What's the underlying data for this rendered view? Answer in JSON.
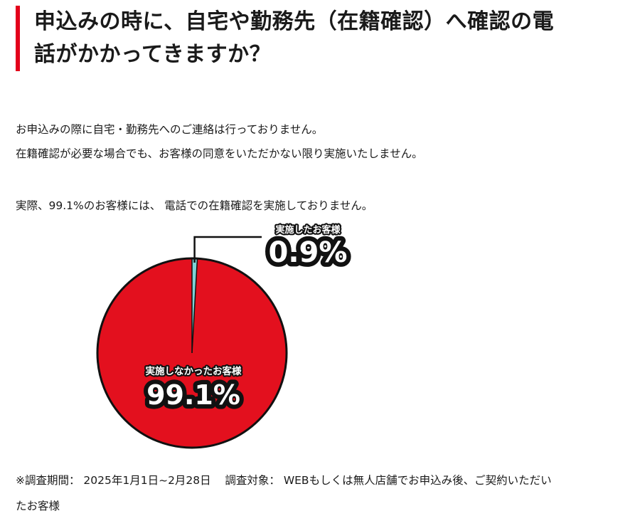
{
  "heading": {
    "line1": "申込みの時に、自宅や勤務先（在籍確認）へ確認の電",
    "line2": "話がかかってきますか？",
    "accent_color": "#e3001b"
  },
  "body": {
    "paragraph1": "お申込みの際に自宅・勤務先へのご連絡は行っておりません。",
    "paragraph2": "在籍確認が必要な場合でも、お客様の同意をいただかない限り実施いたしません。",
    "paragraph3": "実際、99.1%のお客様には、 電話での在籍確認を実施しておりません。"
  },
  "chart_data": {
    "type": "pie",
    "slices": [
      {
        "label": "実施しなかったお客様",
        "value": 99.1,
        "display": "99.1%",
        "color": "#e3101e"
      },
      {
        "label": "実施したお客様",
        "value": 0.9,
        "display": "0.9%",
        "color": "#7fd3d6"
      }
    ],
    "legend": "none",
    "outline_color": "#111111"
  },
  "footnote": {
    "survey_period": "※調査期間： 2025年1月1日~2月28日",
    "survey_target_line1": "調査対象： WEBもしくは無人店舗でお申込み後、ご契約いただい",
    "survey_target_line2": "たお客様"
  }
}
